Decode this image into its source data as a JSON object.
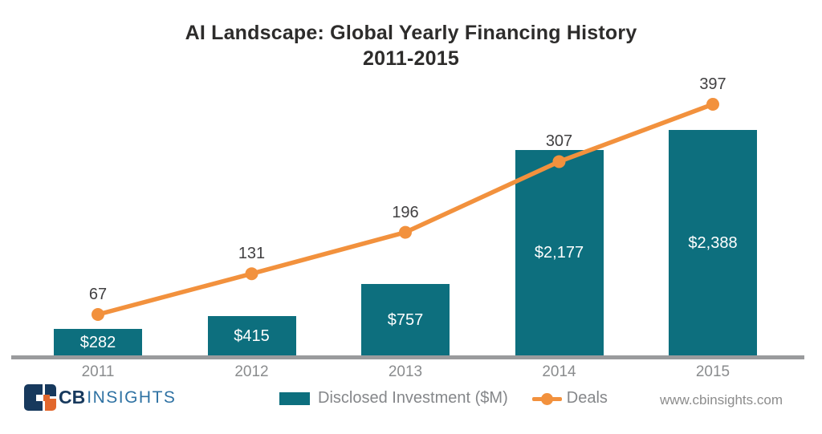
{
  "title": {
    "line1": "AI Landscape: Global Yearly Financing History",
    "line2": "2011-2015"
  },
  "chart_data": {
    "type": "bar",
    "subtype": "bar-line-combo",
    "title": "AI Landscape: Global Yearly Financing History 2011-2015",
    "categories": [
      "2011",
      "2012",
      "2013",
      "2014",
      "2015"
    ],
    "series": [
      {
        "name": "Disclosed Investment ($M)",
        "type": "bar",
        "values": [
          282,
          415,
          757,
          2177,
          2388
        ],
        "labels": [
          "$282",
          "$415",
          "$757",
          "$2,177",
          "$2,388"
        ],
        "color": "#0d6f7e"
      },
      {
        "name": "Deals",
        "type": "line",
        "values": [
          67,
          131,
          196,
          307,
          397
        ],
        "labels": [
          "67",
          "131",
          "196",
          "307",
          "397"
        ],
        "color": "#f2913d"
      }
    ],
    "xlabel": "",
    "ylabel": "",
    "axes_visible": false,
    "grid": false,
    "legend_position": "bottom",
    "bar_axis_max": 2500,
    "line_axis_max": 430
  },
  "legend": {
    "bar_label": "Disclosed Investment ($M)",
    "line_label": "Deals"
  },
  "footer": {
    "brand_cb": "CB",
    "brand_insights": "INSIGHTS",
    "website": "www.cbinsights.com"
  },
  "colors": {
    "bar": "#0d6f7e",
    "line": "#f2913d",
    "title_text": "#2d2c2b",
    "deal_label_text": "#414042",
    "axis_line": "#9a9b9d",
    "year_label_text": "#8a8c8e",
    "legend_text": "#85878a",
    "logo_navy": "#17395d",
    "logo_orange": "#e2672c",
    "logo_insights_blue": "#2f72a3",
    "website_text": "#8c8c8c"
  }
}
